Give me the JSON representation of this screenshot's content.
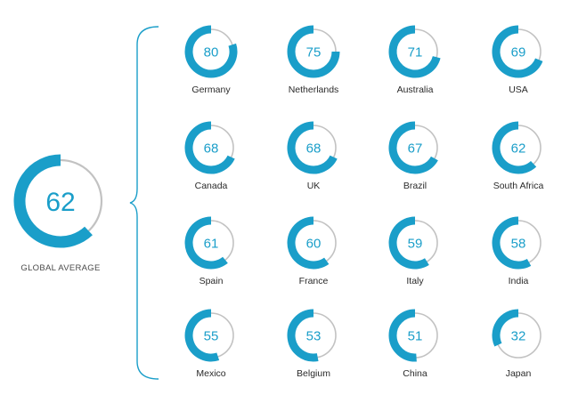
{
  "chart_data": {
    "type": "donut",
    "global": {
      "label": "GLOBAL AVERAGE",
      "value": 62,
      "display": "62"
    },
    "percent_sign": "%",
    "items": [
      {
        "label": "Germany",
        "value": 80,
        "display": "80"
      },
      {
        "label": "Netherlands",
        "value": 75,
        "display": "75"
      },
      {
        "label": "Australia",
        "value": 71,
        "display": "71"
      },
      {
        "label": "USA",
        "value": 69,
        "display": "69"
      },
      {
        "label": "Canada",
        "value": 68,
        "display": "68"
      },
      {
        "label": "UK",
        "value": 68,
        "display": "68"
      },
      {
        "label": "Brazil",
        "value": 67,
        "display": "67"
      },
      {
        "label": "South Africa",
        "value": 62,
        "display": "62"
      },
      {
        "label": "Spain",
        "value": 61,
        "display": "61"
      },
      {
        "label": "France",
        "value": 60,
        "display": "60"
      },
      {
        "label": "Italy",
        "value": 59,
        "display": "59"
      },
      {
        "label": "India",
        "value": 58,
        "display": "58"
      },
      {
        "label": "Mexico",
        "value": 55,
        "display": "55"
      },
      {
        "label": "Belgium",
        "value": 53,
        "display": "53"
      },
      {
        "label": "China",
        "value": 51,
        "display": "51"
      },
      {
        "label": "Japan",
        "value": 32,
        "display": "32"
      }
    ]
  },
  "colors": {
    "accent": "#1a9ec9",
    "track": "#c2c2c2",
    "label": "#2a2a2a",
    "bracket": "#1a9ec9"
  }
}
